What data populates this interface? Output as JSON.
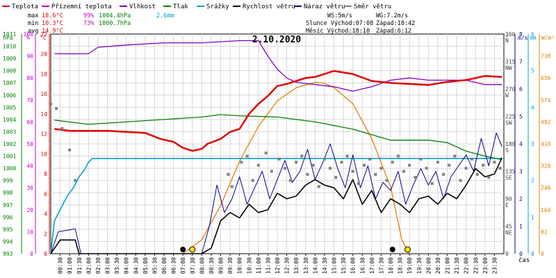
{
  "chart_data": {
    "type": "line",
    "title": "2.10.2020",
    "xlabel": "čas",
    "x_ticks": [
      "00:30",
      "01:00",
      "01:30",
      "02:00",
      "02:30",
      "03:00",
      "03:30",
      "04:00",
      "04:30",
      "05:00",
      "05:30",
      "06:00",
      "06:30",
      "07:00",
      "07:30",
      "08:00",
      "08:30",
      "09:00",
      "09:30",
      "10:00",
      "10:30",
      "11:00",
      "11:30",
      "12:00",
      "12:30",
      "13:00",
      "13:30",
      "14:00",
      "14:30",
      "15:00",
      "15:30",
      "16:00",
      "16:30",
      "17:00",
      "17:30",
      "18:00",
      "18:30",
      "19:00",
      "19:30",
      "20:00",
      "20:30",
      "21:00",
      "21:30",
      "22:00",
      "22:30",
      "23:00",
      "23:30"
    ],
    "legend": [
      {
        "label": "Teplota",
        "color": "#e00000"
      },
      {
        "label": "Přízemní teplota",
        "color": "#c000c0"
      },
      {
        "label": "Vlhkost",
        "color": "#8000c0"
      },
      {
        "label": "Tlak",
        "color": "#008000"
      },
      {
        "label": "Srážky",
        "color": "#00a0d0"
      },
      {
        "label": "Rychlost větru",
        "color": "#000000"
      },
      {
        "label": "Náraz větru",
        "color": "#000080"
      },
      {
        "label": "Směr větru",
        "color": "#808080"
      }
    ],
    "stats": {
      "max": {
        "label": "max",
        "temp": "18.6°C",
        "hum": "99%",
        "press": "1004.4hPa",
        "rain": "2.6mm"
      },
      "min": {
        "label": "min",
        "temp": "10.3°C",
        "hum": "73%",
        "press": "1000.7hPa"
      },
      "avg": {
        "label": "avg",
        "temp": "14.9°C"
      }
    },
    "info": {
      "ws": "WS:5m/s",
      "wg": "WG:7.2m/s",
      "sun": "Slunce Východ:07:08",
      "sun_set": "Západ:18:42",
      "moon": "Měsíc  Východ:18:10",
      "moon_set": "Západ:6:12"
    },
    "axes": {
      "hpa": {
        "label": "hPa",
        "range": [
          993,
          1011
        ],
        "color": "#008000"
      },
      "pct": {
        "label": "%",
        "range": [
          0,
          100
        ],
        "color": "#c000c0"
      },
      "degc": {
        "label": "°C",
        "range": [
          0,
          22
        ],
        "color": "#e00000"
      },
      "deg": {
        "label": "°",
        "color": "#404040",
        "ticks": [
          {
            "v": 0,
            "l": "0"
          },
          {
            "v": 45,
            "l": "45 NE"
          },
          {
            "v": 90,
            "l": "90 E"
          },
          {
            "v": 135,
            "l": "135 SE"
          },
          {
            "v": 180,
            "l": "180 S"
          },
          {
            "v": 225,
            "l": "225 SW"
          },
          {
            "v": 270,
            "l": "270 W"
          },
          {
            "v": 315,
            "l": "315 NW"
          },
          {
            "v": 360,
            "l": "360 N"
          }
        ]
      },
      "ms": {
        "label": "m/s",
        "range": [
          0,
          8
        ],
        "color": "#000080"
      },
      "mm": {
        "label": "mm",
        "range": [
          0,
          6
        ],
        "color": "#00a0d0"
      },
      "wm2": {
        "label": "W/m²",
        "ticks": [
          0,
          82,
          164,
          246,
          328,
          410,
          492,
          574,
          656,
          738
        ],
        "color": "#e08000"
      }
    },
    "series": {
      "temperature": {
        "name": "Teplota",
        "x_h": [
          0.2,
          1,
          2,
          3,
          4,
          5,
          5.8,
          6.5,
          7,
          7.5,
          8,
          8.3,
          9,
          9.5,
          10,
          10.5,
          11,
          11.5,
          12,
          12.5,
          13,
          13.5,
          14,
          15,
          16,
          17,
          18,
          19,
          20,
          21,
          22,
          23,
          23.9
        ],
        "y": [
          12.5,
          12.3,
          12.3,
          12.3,
          12.2,
          12.1,
          11.5,
          11.2,
          10.6,
          10.3,
          10.5,
          11.0,
          11.5,
          12.2,
          12.5,
          14.0,
          15.0,
          15.8,
          16.8,
          17.0,
          17.3,
          17.6,
          17.7,
          18.3,
          18.0,
          17.3,
          17.1,
          17.0,
          16.9,
          17.2,
          17.4,
          17.8,
          17.7
        ]
      },
      "humidity": {
        "name": "Vlhkost",
        "x_h": [
          0.2,
          2,
          2.5,
          4,
          6,
          8,
          10,
          11,
          11.5,
          12,
          12.5,
          13,
          14,
          15,
          16,
          17,
          18,
          19,
          20,
          21,
          22,
          23,
          23.9
        ],
        "y": [
          91,
          91,
          94,
          95,
          96,
          96,
          97,
          97,
          90,
          84,
          80,
          78,
          77,
          76,
          74,
          76,
          79,
          80,
          79,
          79,
          79,
          77,
          77
        ]
      },
      "pressure": {
        "name": "Tlak",
        "x_h": [
          0.2,
          2,
          4,
          6,
          8,
          9,
          10,
          12,
          14,
          16,
          18,
          20,
          21,
          22,
          23,
          23.9
        ],
        "y": [
          1003.95,
          1003.6,
          1003.8,
          1004.0,
          1004.2,
          1004.4,
          1004.3,
          1004.2,
          1003.8,
          1003.2,
          1002.3,
          1002.3,
          1002.1,
          1001.4,
          1001.0,
          1000.7
        ]
      },
      "rain": {
        "name": "Srážky",
        "x_h": [
          0.0,
          0.2,
          0.6,
          0.9,
          1.2,
          1.5,
          1.8,
          2.0,
          2.2,
          23.9
        ],
        "y": [
          0.0,
          0.9,
          1.3,
          1.6,
          1.8,
          2.1,
          2.3,
          2.5,
          2.6,
          2.6
        ]
      },
      "wind_dir": {
        "name": "Směr větru",
        "x_h": [
          0.0,
          0.3,
          0.6,
          1.0,
          1.3
        ],
        "y": [
          245,
          238,
          205,
          170,
          120
        ]
      },
      "wind_speed": {
        "name": "Rychlost větru",
        "x_h": [
          0.0,
          0.5,
          1.3,
          1.5,
          8.0,
          8.5,
          9.0,
          9.5,
          10.0,
          10.5,
          11.0,
          11.5,
          12.0,
          12.5,
          13.0,
          13.5,
          14.0,
          14.5,
          15.0,
          15.5,
          16.0,
          16.5,
          17.0,
          17.5,
          18.0,
          18.5,
          19.0,
          19.5,
          20.0,
          20.5,
          21.0,
          21.5,
          22.0,
          22.5,
          23.0,
          23.5,
          23.9
        ],
        "y": [
          0.0,
          0.5,
          0.5,
          0.0,
          0.0,
          0.2,
          1.2,
          1.5,
          1.3,
          1.8,
          1.5,
          1.6,
          2.2,
          2.0,
          2.1,
          2.5,
          2.7,
          2.5,
          2.4,
          2.0,
          2.7,
          1.8,
          2.3,
          1.5,
          2.0,
          1.8,
          1.5,
          2.0,
          2.1,
          1.8,
          2.2,
          2.0,
          2.5,
          3.1,
          2.8,
          2.9,
          3.5
        ]
      },
      "gust": {
        "name": "Náraz větru",
        "x_h": [
          0.0,
          0.4,
          1.3,
          1.6,
          8.0,
          8.4,
          8.8,
          9.2,
          9.6,
          10.0,
          10.4,
          10.8,
          11.2,
          11.6,
          12.0,
          12.4,
          12.8,
          13.2,
          13.6,
          14.0,
          14.4,
          14.8,
          15.2,
          15.6,
          16.0,
          16.4,
          16.8,
          17.2,
          17.6,
          18.0,
          18.4,
          18.8,
          19.2,
          19.6,
          20.0,
          20.4,
          20.8,
          21.2,
          21.6,
          22.0,
          22.4,
          22.8,
          23.2,
          23.6,
          23.9
        ],
        "y": [
          0.0,
          0.8,
          0.9,
          0.0,
          0.0,
          1.0,
          2.5,
          1.5,
          2.0,
          2.8,
          1.8,
          2.4,
          3.0,
          2.0,
          2.7,
          3.4,
          2.6,
          3.0,
          3.8,
          2.7,
          3.3,
          4.0,
          3.1,
          2.4,
          3.6,
          2.4,
          3.2,
          2.0,
          2.6,
          2.3,
          3.0,
          1.8,
          2.5,
          3.1,
          2.5,
          3.0,
          2.0,
          2.8,
          3.2,
          3.6,
          3.0,
          4.2,
          3.2,
          4.4,
          3.9
        ]
      },
      "solar": {
        "name": "",
        "x_h": [
          7.0,
          8,
          9,
          10,
          11,
          12,
          13,
          14,
          14.5,
          15,
          16,
          17,
          18,
          18.6,
          19.0
        ],
        "y": [
          0,
          52,
          180,
          345,
          475,
          570,
          620,
          640,
          636,
          620,
          560,
          430,
          250,
          50,
          0
        ]
      },
      "dir_points": {
        "name": "Směr větru",
        "x_h": [
          9.4,
          9.6,
          10.1,
          10.4,
          10.7,
          11.0,
          11.4,
          11.7,
          12.1,
          12.4,
          12.7,
          13.0,
          13.3,
          13.6,
          13.9,
          14.2,
          14.5,
          14.8,
          15.1,
          15.4,
          15.7,
          16.0,
          16.3,
          16.6,
          16.9,
          17.2,
          17.5,
          17.8,
          18.1,
          18.4,
          18.7,
          19.0,
          19.3,
          19.6,
          19.9,
          20.2,
          20.5,
          20.8,
          21.1,
          21.4,
          21.7,
          22.0,
          22.3,
          22.6,
          22.9,
          23.2,
          23.5,
          23.8
        ],
        "y": [
          130,
          110,
          150,
          160,
          120,
          145,
          165,
          135,
          155,
          140,
          120,
          150,
          160,
          130,
          145,
          110,
          155,
          140,
          125,
          150,
          160,
          135,
          115,
          145,
          155,
          130,
          140,
          120,
          150,
          160,
          135,
          145,
          125,
          155,
          140,
          115,
          150,
          130,
          145,
          160,
          120,
          140,
          155,
          130,
          145,
          125,
          150,
          140
        ]
      }
    },
    "events": {
      "rain_markers": [
        {
          "x_h": 7.0,
          "icon": "black-dot"
        },
        {
          "x_h": 18.1,
          "icon": "black-dot"
        }
      ],
      "sun_markers": [
        {
          "x_h": 7.5,
          "icon": "sun"
        },
        {
          "x_h": 18.9,
          "icon": "sun"
        }
      ],
      "grid_color": "#d8d8d8"
    }
  }
}
